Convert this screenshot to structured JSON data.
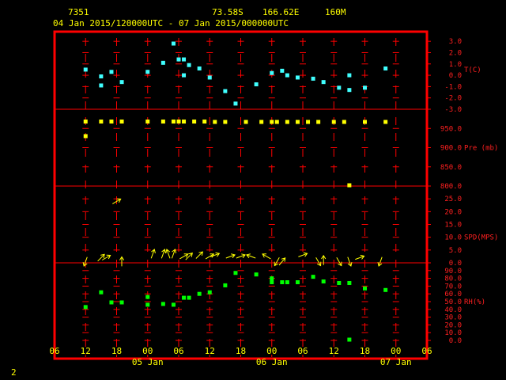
{
  "header": {
    "station": "7351",
    "lat": "73.58S",
    "lon": "166.62E",
    "elev": "160M",
    "range": "04 Jan 2015/120000UTC - 07 Jan 2015/000000UTC"
  },
  "footer": {
    "page": "2"
  },
  "colors": {
    "frame": "#ff0000",
    "temp": "#40ffff",
    "pressure": "#ffff00",
    "wind": "#ffff00",
    "rh": "#00ff00",
    "text": "#ffff00"
  },
  "chart_data": {
    "type": "scatter",
    "x_unit": "hours since 04 Jan 2015 06 UTC",
    "x_ticks": [
      {
        "x": 0,
        "label": "06"
      },
      {
        "x": 6,
        "label": "12"
      },
      {
        "x": 12,
        "label": "18"
      },
      {
        "x": 18,
        "label": "00"
      },
      {
        "x": 24,
        "label": "06"
      },
      {
        "x": 30,
        "label": "12"
      },
      {
        "x": 36,
        "label": "18"
      },
      {
        "x": 42,
        "label": "00"
      },
      {
        "x": 48,
        "label": "06"
      },
      {
        "x": 54,
        "label": "12"
      },
      {
        "x": 60,
        "label": "18"
      },
      {
        "x": 66,
        "label": "00"
      },
      {
        "x": 72,
        "label": "06"
      }
    ],
    "day_labels": [
      {
        "x": 18,
        "label": "05 Jan"
      },
      {
        "x": 42,
        "label": "06 Jan"
      },
      {
        "x": 66,
        "label": "07 Jan"
      }
    ],
    "panels": [
      {
        "name": "T(C)",
        "ylim": [
          -3.0,
          3.5
        ],
        "ticks": [
          {
            "v": 3.0,
            "label": "3.0"
          },
          {
            "v": 2.0,
            "label": "2.0"
          },
          {
            "v": 1.0,
            "label": "1.0"
          },
          {
            "v": 0.0,
            "label": "0.0"
          },
          {
            "v": -1.0,
            "label": "-1.0"
          },
          {
            "v": -2.0,
            "label": "-2.0"
          },
          {
            "v": -3.0,
            "label": "-3.0"
          }
        ],
        "name_value": 0.5,
        "marker": "square",
        "points": [
          [
            6,
            0.5
          ],
          [
            9,
            -0.1
          ],
          [
            9,
            -0.9
          ],
          [
            11,
            0.3
          ],
          [
            13,
            -0.6
          ],
          [
            18,
            0.3
          ],
          [
            21,
            1.1
          ],
          [
            23,
            2.8
          ],
          [
            24,
            1.4
          ],
          [
            25,
            1.4
          ],
          [
            25,
            0.0
          ],
          [
            26,
            0.9
          ],
          [
            28,
            0.6
          ],
          [
            30,
            -0.2
          ],
          [
            33,
            -1.4
          ],
          [
            35,
            -2.5
          ],
          [
            39,
            -0.8
          ],
          [
            42,
            0.2
          ],
          [
            44,
            0.4
          ],
          [
            45,
            0.0
          ],
          [
            47,
            -0.2
          ],
          [
            50,
            -0.3
          ],
          [
            52,
            -0.6
          ],
          [
            55,
            -1.1
          ],
          [
            57,
            -1.3
          ],
          [
            57,
            0.0
          ],
          [
            60,
            -1.1
          ],
          [
            64,
            0.6
          ]
        ]
      },
      {
        "name": "Pre (mb)",
        "ylim": [
          800.0,
          1000.0
        ],
        "ticks": [
          {
            "v": 950.0,
            "label": "950.0"
          },
          {
            "v": 900.0,
            "label": "900.0"
          },
          {
            "v": 850.0,
            "label": "850.0"
          },
          {
            "v": 800.0,
            "label": "800.0"
          }
        ],
        "name_value": 900.0,
        "marker": "square",
        "points": [
          [
            6,
            968
          ],
          [
            6,
            930
          ],
          [
            9,
            968
          ],
          [
            11,
            968
          ],
          [
            13,
            968
          ],
          [
            18,
            968
          ],
          [
            21,
            968
          ],
          [
            23,
            968
          ],
          [
            24,
            968
          ],
          [
            25,
            968
          ],
          [
            27,
            968
          ],
          [
            29,
            968
          ],
          [
            31,
            967
          ],
          [
            33,
            967
          ],
          [
            37,
            967
          ],
          [
            40,
            967
          ],
          [
            42,
            967
          ],
          [
            43,
            967
          ],
          [
            45,
            967
          ],
          [
            47,
            967
          ],
          [
            49,
            967
          ],
          [
            51,
            967
          ],
          [
            54,
            967
          ],
          [
            56,
            967
          ],
          [
            60,
            967
          ],
          [
            64,
            967
          ],
          [
            57,
            802
          ]
        ]
      },
      {
        "name": "SPD(MPS)",
        "ylim": [
          0.0,
          30.0
        ],
        "ticks": [
          {
            "v": 25.0,
            "label": "25.0"
          },
          {
            "v": 20.0,
            "label": "20.0"
          },
          {
            "v": 15.0,
            "label": "15.0"
          },
          {
            "v": 10.0,
            "label": "10.0"
          },
          {
            "v": 5.0,
            "label": "5.0"
          },
          {
            "v": 0.0,
            "label": "0.0"
          }
        ],
        "name_value": 10.0,
        "marker": "arrow",
        "points": [
          [
            6,
            0.5,
            200
          ],
          [
            9,
            2.0,
            45
          ],
          [
            10,
            2.0,
            60
          ],
          [
            12,
            24.0,
            60
          ],
          [
            13,
            0.5,
            0
          ],
          [
            19,
            3.5,
            20
          ],
          [
            21,
            3.5,
            20
          ],
          [
            22,
            3.5,
            340
          ],
          [
            23,
            3.5,
            20
          ],
          [
            25,
            2.5,
            60
          ],
          [
            26,
            2.5,
            45
          ],
          [
            28,
            3.0,
            45
          ],
          [
            30,
            2.5,
            60
          ],
          [
            31,
            3.0,
            70
          ],
          [
            34,
            2.5,
            70
          ],
          [
            36,
            2.5,
            70
          ],
          [
            38,
            2.5,
            290
          ],
          [
            41,
            2.5,
            300
          ],
          [
            43,
            0.5,
            210
          ],
          [
            44,
            0.5,
            40
          ],
          [
            48,
            3.0,
            70
          ],
          [
            51,
            0.5,
            150
          ],
          [
            52,
            1.0,
            0
          ],
          [
            55,
            0.5,
            150
          ],
          [
            57,
            0.5,
            160
          ],
          [
            59,
            2.0,
            70
          ],
          [
            63,
            0.5,
            200
          ]
        ]
      },
      {
        "name": "RH(%)",
        "ylim": [
          0.0,
          100.0
        ],
        "ticks": [
          {
            "v": 90.0,
            "label": "90.0"
          },
          {
            "v": 80.0,
            "label": "80.0"
          },
          {
            "v": 70.0,
            "label": "70.0"
          },
          {
            "v": 60.0,
            "label": "60.0"
          },
          {
            "v": 50.0,
            "label": "50.0"
          },
          {
            "v": 40.0,
            "label": "40.0"
          },
          {
            "v": 30.0,
            "label": "30.0"
          },
          {
            "v": 20.0,
            "label": "20.0"
          },
          {
            "v": 10.0,
            "label": "10.0"
          },
          {
            "v": 0.0,
            "label": "0.0"
          }
        ],
        "name_value": 50.0,
        "marker": "square",
        "points": [
          [
            6,
            43
          ],
          [
            9,
            62
          ],
          [
            11,
            49
          ],
          [
            13,
            49
          ],
          [
            18,
            46
          ],
          [
            18,
            56
          ],
          [
            21,
            47
          ],
          [
            23,
            46
          ],
          [
            25,
            55
          ],
          [
            26,
            55
          ],
          [
            28,
            60
          ],
          [
            30,
            62
          ],
          [
            33,
            71
          ],
          [
            35,
            87
          ],
          [
            39,
            85
          ],
          [
            42,
            80
          ],
          [
            42,
            75
          ],
          [
            44,
            75
          ],
          [
            45,
            75
          ],
          [
            47,
            75
          ],
          [
            50,
            82
          ],
          [
            52,
            76
          ],
          [
            55,
            74
          ],
          [
            57,
            74
          ],
          [
            57,
            1
          ],
          [
            60,
            67
          ],
          [
            64,
            65
          ]
        ]
      }
    ]
  }
}
